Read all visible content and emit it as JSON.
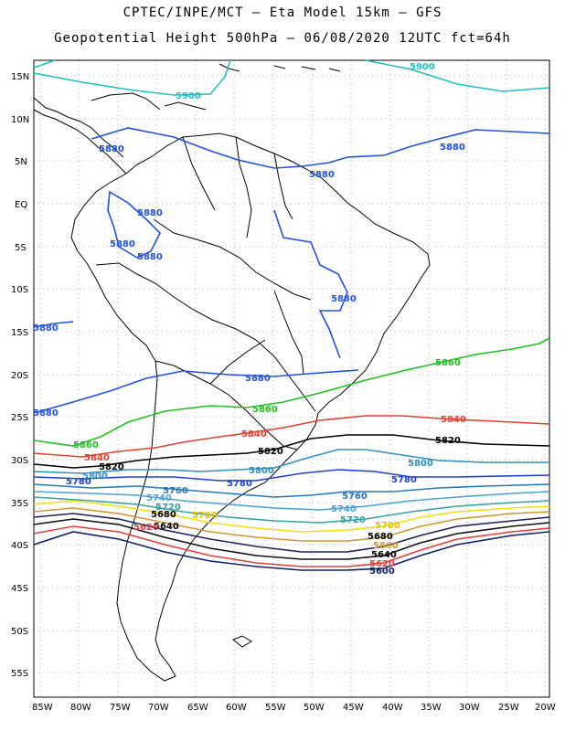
{
  "header": {
    "line1": "CPTEC/INPE/MCT –  Eta Model 15km – GFS",
    "line2": "Geopotential Height 500hPa – 06/08/2020 12UTC fct=64h"
  },
  "axes": {
    "lat_labels": [
      "15N",
      "10N",
      "5N",
      "EQ",
      "5S",
      "10S",
      "15S",
      "20S",
      "25S",
      "30S",
      "35S",
      "40S",
      "45S",
      "50S",
      "55S"
    ],
    "lon_labels": [
      "85W",
      "80W",
      "75W",
      "70W",
      "65W",
      "60W",
      "55W",
      "50W",
      "45W",
      "40W",
      "35W",
      "30W",
      "25W",
      "20W"
    ]
  },
  "colors": {
    "c5900": "#20c0c0",
    "c5880": "#2050e0",
    "c5860": "#20c020",
    "c5840": "#e04030",
    "c5820": "#000000",
    "c5800": "#3090c0",
    "c5780": "#2040d0",
    "c5760": "#2878b8",
    "c5740": "#50a0d0",
    "c5720": "#3aa0a0",
    "c5700": "#f0e010",
    "c5680": "#d09830",
    "c5660": "#202060",
    "c5640": "#101010",
    "c5620": "#e04040",
    "c5600": "#10206a"
  },
  "contour_labels": [
    {
      "text": "5900",
      "color": "#20c0c0"
    },
    {
      "text": "5900",
      "color": "#20c0c0"
    },
    {
      "text": "5880",
      "color": "#2050e0"
    },
    {
      "text": "5880",
      "color": "#2050e0"
    },
    {
      "text": "5880",
      "color": "#2050e0"
    },
    {
      "text": "5880",
      "color": "#2050e0"
    },
    {
      "text": "5880",
      "color": "#2050e0"
    },
    {
      "text": "5880",
      "color": "#2050e0"
    },
    {
      "text": "5880",
      "color": "#2050e0"
    },
    {
      "text": "5880",
      "color": "#2050e0"
    },
    {
      "text": "5880",
      "color": "#2050e0"
    },
    {
      "text": "5880",
      "color": "#2050e0"
    },
    {
      "text": "5860",
      "color": "#20c020"
    },
    {
      "text": "5860",
      "color": "#20c020"
    },
    {
      "text": "5860",
      "color": "#20c020"
    },
    {
      "text": "5840",
      "color": "#e04030"
    },
    {
      "text": "5840",
      "color": "#e04030"
    },
    {
      "text": "5840",
      "color": "#e04030"
    },
    {
      "text": "5820",
      "color": "#000000"
    },
    {
      "text": "5820",
      "color": "#000000"
    },
    {
      "text": "5820",
      "color": "#000000"
    },
    {
      "text": "5800",
      "color": "#3090c0"
    },
    {
      "text": "5800",
      "color": "#3090c0"
    },
    {
      "text": "5800",
      "color": "#3090c0"
    },
    {
      "text": "5780",
      "color": "#2040d0"
    },
    {
      "text": "5780",
      "color": "#2040d0"
    },
    {
      "text": "5780",
      "color": "#2040d0"
    },
    {
      "text": "5760",
      "color": "#2878b8"
    },
    {
      "text": "5760",
      "color": "#2878b8"
    },
    {
      "text": "5740",
      "color": "#50a0d0"
    },
    {
      "text": "5740",
      "color": "#50a0d0"
    },
    {
      "text": "5720",
      "color": "#3aa0a0"
    },
    {
      "text": "5720",
      "color": "#3aa0a0"
    },
    {
      "text": "5700",
      "color": "#e0c000"
    },
    {
      "text": "5700",
      "color": "#e0c000"
    },
    {
      "text": "5680",
      "color": "#000000"
    },
    {
      "text": "5680",
      "color": "#000000"
    },
    {
      "text": "5660",
      "color": "#d09830"
    },
    {
      "text": "5640",
      "color": "#000000"
    },
    {
      "text": "5640",
      "color": "#000000"
    },
    {
      "text": "5620",
      "color": "#e04040"
    },
    {
      "text": "5620",
      "color": "#e04040"
    },
    {
      "text": "5600",
      "color": "#10206a"
    }
  ]
}
